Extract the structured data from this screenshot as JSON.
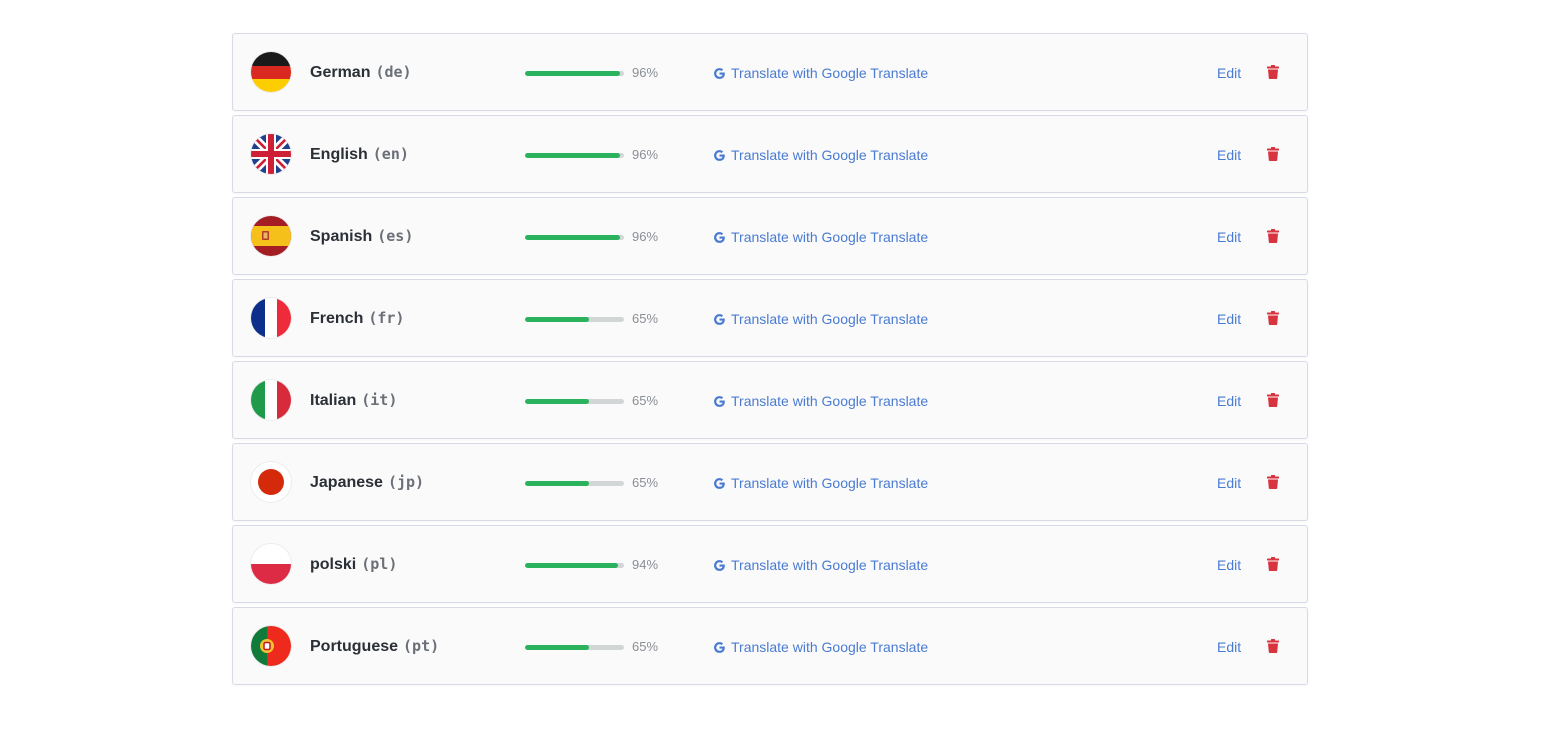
{
  "translate_label": "Translate with Google Translate",
  "edit_label": "Edit",
  "colors": {
    "progress_fill": "#2bb25d",
    "progress_track": "#d3d6d6",
    "link": "#4a7bd2",
    "delete": "#d8343f"
  },
  "languages": [
    {
      "name": "German",
      "code": "(de)",
      "progress": 0.96,
      "percent_label": "96%",
      "flag_icon": "flag-germany-icon"
    },
    {
      "name": "English",
      "code": "(en)",
      "progress": 0.96,
      "percent_label": "96%",
      "flag_icon": "flag-uk-icon"
    },
    {
      "name": "Spanish",
      "code": "(es)",
      "progress": 0.96,
      "percent_label": "96%",
      "flag_icon": "flag-spain-icon"
    },
    {
      "name": "French",
      "code": "(fr)",
      "progress": 0.65,
      "percent_label": "65%",
      "flag_icon": "flag-france-icon"
    },
    {
      "name": "Italian",
      "code": "(it)",
      "progress": 0.65,
      "percent_label": "65%",
      "flag_icon": "flag-italy-icon"
    },
    {
      "name": "Japanese",
      "code": "(jp)",
      "progress": 0.65,
      "percent_label": "65%",
      "flag_icon": "flag-japan-icon"
    },
    {
      "name": "polski",
      "code": "(pl)",
      "progress": 0.94,
      "percent_label": "94%",
      "flag_icon": "flag-poland-icon"
    },
    {
      "name": "Portuguese",
      "code": "(pt)",
      "progress": 0.65,
      "percent_label": "65%",
      "flag_icon": "flag-portugal-icon"
    }
  ]
}
